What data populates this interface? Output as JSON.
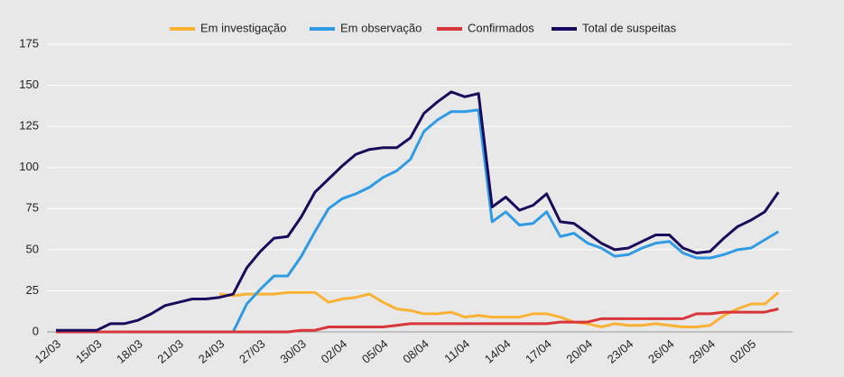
{
  "chart_data": {
    "type": "line",
    "categories": [
      "12/03",
      null,
      null,
      "15/03",
      null,
      null,
      "18/03",
      null,
      null,
      "21/03",
      null,
      null,
      "24/03",
      null,
      null,
      "27/03",
      null,
      null,
      "30/03",
      null,
      null,
      "02/04",
      null,
      null,
      "05/04",
      null,
      null,
      "08/04",
      null,
      null,
      "11/04",
      null,
      null,
      "14/04",
      null,
      null,
      "17/04",
      null,
      null,
      "20/04",
      null,
      null,
      "23/04",
      null,
      null,
      "26/04",
      null,
      null,
      "29/04",
      null,
      null,
      "02/05",
      null,
      null
    ],
    "series": [
      {
        "name": "Em investigação",
        "color": "#f9b233",
        "values": [
          null,
          null,
          null,
          null,
          null,
          null,
          null,
          null,
          null,
          null,
          null,
          null,
          23,
          22,
          23,
          23,
          23,
          24,
          24,
          24,
          18,
          20,
          21,
          23,
          18,
          14,
          13,
          11,
          11,
          12,
          9,
          10,
          9,
          9,
          9,
          11,
          11,
          9,
          6,
          5,
          3,
          5,
          4,
          4,
          5,
          4,
          3,
          3,
          4,
          10,
          14,
          17,
          17,
          24
        ]
      },
      {
        "name": "Em observação",
        "color": "#2f9be4",
        "values": [
          null,
          null,
          null,
          null,
          null,
          null,
          null,
          null,
          null,
          null,
          null,
          null,
          null,
          0,
          17,
          26,
          34,
          34,
          46,
          61,
          75,
          81,
          84,
          88,
          94,
          98,
          105,
          122,
          129,
          134,
          134,
          135,
          67,
          73,
          65,
          66,
          73,
          58,
          60,
          54,
          51,
          46,
          47,
          51,
          54,
          55,
          48,
          45,
          45,
          47,
          50,
          51,
          56,
          61
        ]
      },
      {
        "name": "Confirmados",
        "color": "#d8363a",
        "values": [
          0,
          0,
          0,
          0,
          0,
          0,
          0,
          0,
          0,
          0,
          0,
          0,
          0,
          0,
          0,
          0,
          0,
          0,
          1,
          1,
          3,
          3,
          3,
          3,
          3,
          4,
          5,
          5,
          5,
          5,
          5,
          5,
          5,
          5,
          5,
          5,
          5,
          6,
          6,
          6,
          8,
          8,
          8,
          8,
          8,
          8,
          8,
          11,
          11,
          12,
          12,
          12,
          12,
          14
        ]
      },
      {
        "name": "Total de suspeitas",
        "color": "#1a0a5c",
        "values": [
          1,
          1,
          1,
          1,
          5,
          5,
          7,
          11,
          16,
          18,
          20,
          20,
          21,
          23,
          39,
          49,
          57,
          58,
          70,
          85,
          93,
          101,
          108,
          111,
          112,
          112,
          118,
          133,
          140,
          146,
          143,
          145,
          76,
          82,
          74,
          77,
          84,
          67,
          66,
          60,
          54,
          50,
          51,
          55,
          59,
          59,
          51,
          48,
          49,
          57,
          64,
          68,
          73,
          85
        ]
      }
    ],
    "ylim": [
      0,
      175
    ],
    "yticks": [
      0,
      25,
      50,
      75,
      100,
      125,
      150,
      175
    ],
    "grid": true,
    "legend": "top"
  }
}
